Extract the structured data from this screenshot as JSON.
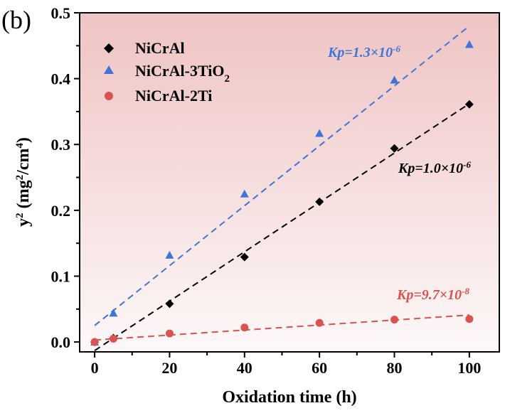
{
  "panel_label": "(b)",
  "chart_data": {
    "type": "scatter",
    "xlabel": "Oxidation time (h)",
    "ylabel": {
      "base": "y",
      "sup": "2",
      "open": " (mg",
      "sup2": "2",
      "mid": "/cm",
      "sup3": "4",
      "close": ")"
    },
    "xlim": [
      -4,
      108
    ],
    "ylim": [
      -0.015,
      0.5
    ],
    "x_ticks": [
      0,
      20,
      40,
      60,
      80,
      100
    ],
    "x_tick_labels": [
      "0",
      "20",
      "40",
      "60",
      "80",
      "100"
    ],
    "y_ticks": [
      0.0,
      0.1,
      0.2,
      0.3,
      0.4,
      0.5
    ],
    "y_tick_labels": [
      "0.0",
      "0.1",
      "0.2",
      "0.3",
      "0.4",
      "0.5"
    ],
    "grid": false,
    "legend_placement": "top-left",
    "background": {
      "top": "#efc3c3",
      "bottom": "#fdf8f8"
    },
    "series": [
      {
        "name": "NiCrAl",
        "legend": {
          "main": "NiCrAl"
        },
        "marker": "diamond",
        "color": "#000000",
        "x": [
          0,
          5,
          20,
          40,
          60,
          80,
          100
        ],
        "y": [
          0.0,
          0.006,
          0.058,
          0.129,
          0.213,
          0.294,
          0.361
        ],
        "fit": {
          "x": [
            0,
            100
          ],
          "y": [
            -0.013,
            0.362
          ]
        },
        "annotation": {
          "main": "Kp=1.0×10",
          "sup": "-6"
        }
      },
      {
        "name": "NiCrAl-3TiO2",
        "legend": {
          "main": "NiCrAl-3TiO",
          "sub": "2"
        },
        "marker": "triangle",
        "color": "#3f74d8",
        "x": [
          0,
          5,
          20,
          40,
          60,
          80,
          100
        ],
        "y": [
          0.0,
          0.044,
          0.132,
          0.225,
          0.317,
          0.398,
          0.452
        ],
        "fit": {
          "x": [
            0,
            100
          ],
          "y": [
            0.025,
            0.48
          ]
        },
        "annotation": {
          "main": "Kp=1.3×10",
          "sup": "-6"
        }
      },
      {
        "name": "NiCrAl-2Ti",
        "legend": {
          "main": "NiCrAl-2Ti"
        },
        "marker": "circle",
        "color": "#d9534f",
        "x": [
          0,
          5,
          20,
          40,
          60,
          80,
          100
        ],
        "y": [
          0.0,
          0.005,
          0.013,
          0.022,
          0.029,
          0.034,
          0.035
        ],
        "fit": {
          "x": [
            0,
            100
          ],
          "y": [
            0.003,
            0.041
          ]
        },
        "annotation": {
          "main": "Kp=9.7×10",
          "sup": "-8"
        }
      }
    ]
  }
}
